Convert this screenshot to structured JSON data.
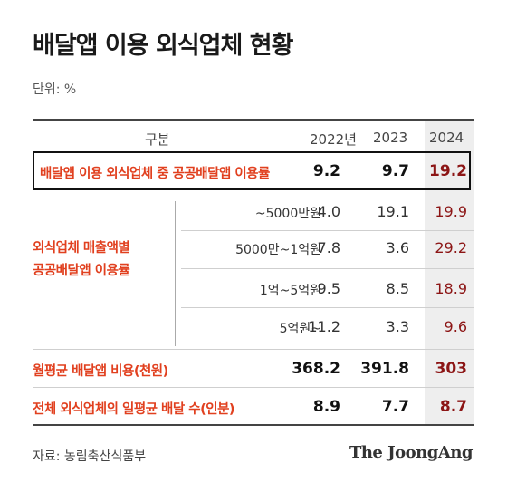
{
  "title": "배달앱 이용 외식업체 현황",
  "unit": "단위: %",
  "header": {
    "category": "구분",
    "years": [
      "2022년",
      "2023",
      "2024"
    ]
  },
  "rows": {
    "public_rate": {
      "label": "배달앱 이용 외식업체 중 공공배달앱 이용률",
      "values": [
        "9.2",
        "9.7",
        "19.2"
      ]
    },
    "sales_group_label": [
      "외식업체 매출액별",
      "공공배달앱 이용률"
    ],
    "sales": [
      {
        "label": "~5000만원",
        "values": [
          "4.0",
          "19.1",
          "19.9"
        ]
      },
      {
        "label": "5000만~1억원",
        "values": [
          "7.8",
          "3.6",
          "29.2"
        ]
      },
      {
        "label": "1억~5억원",
        "values": [
          "9.5",
          "8.5",
          "18.9"
        ]
      },
      {
        "label": "5억원~",
        "values": [
          "11.2",
          "3.3",
          "9.6"
        ]
      }
    ],
    "monthly_cost": {
      "label": "월평균 배달앱 비용(천원)",
      "values": [
        "368.2",
        "391.8",
        "303"
      ]
    },
    "daily_orders": {
      "label": "전체 외식업체의 일평균 배달 수(인분)",
      "values": [
        "8.9",
        "7.7",
        "8.7"
      ]
    }
  },
  "source": "자료: 농림축산식품부",
  "brand": "The JoongAng",
  "colors": {
    "accent_red": "#e1401f",
    "dark_red": "#8c1515",
    "highlight_column": "#eeeeee"
  }
}
